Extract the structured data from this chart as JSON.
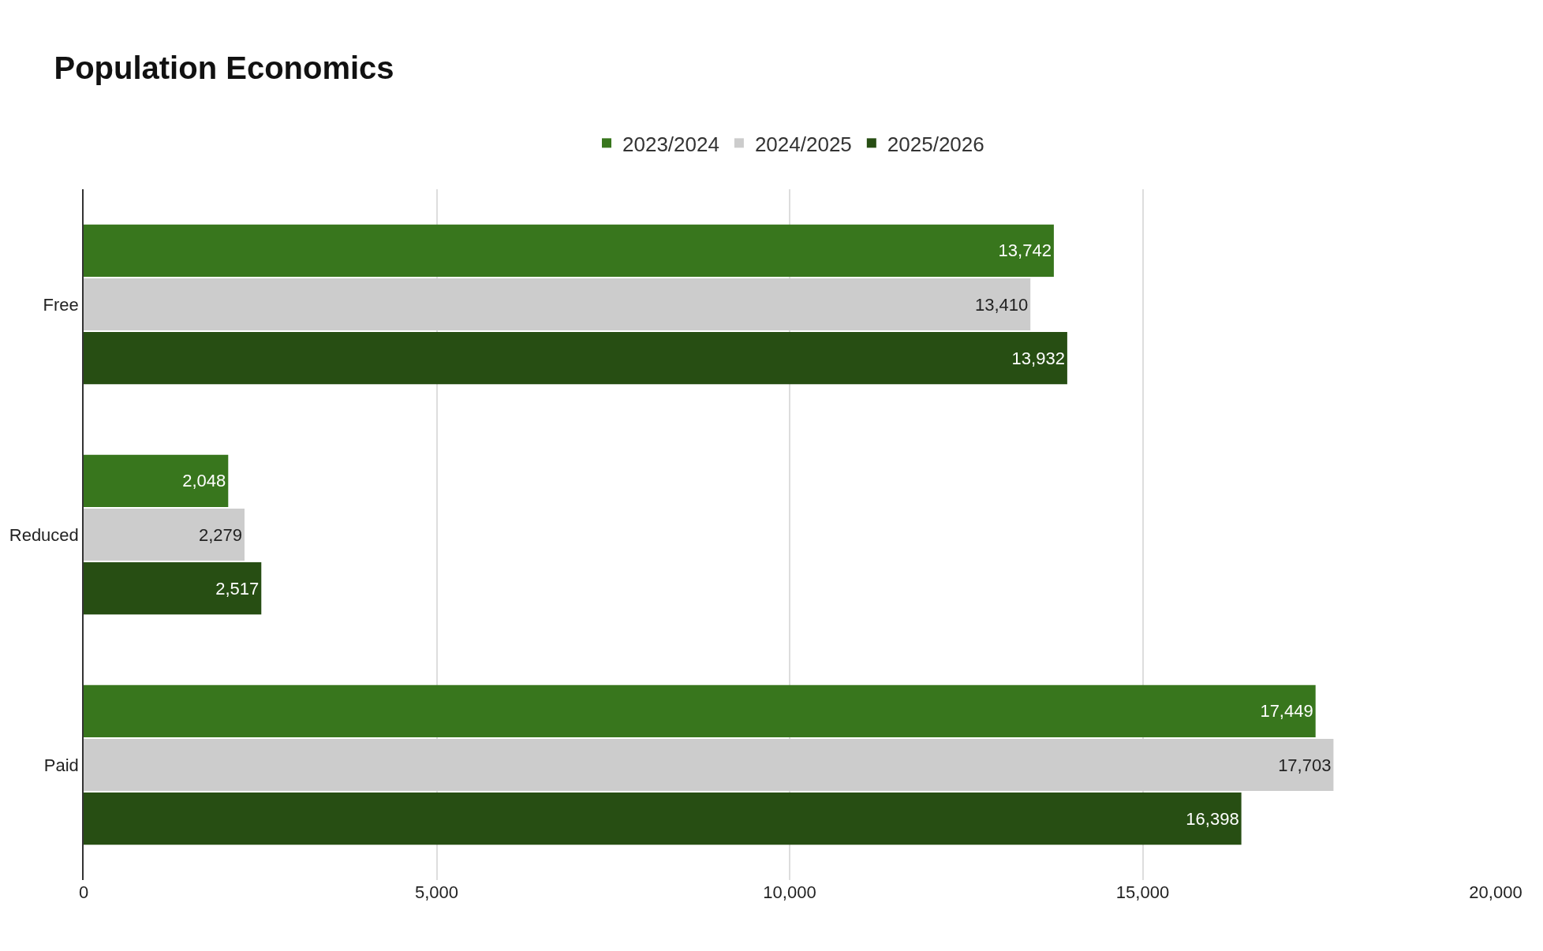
{
  "chart_data": {
    "type": "bar",
    "orientation": "horizontal",
    "title": "Population Economics",
    "categories": [
      "Free",
      "Reduced",
      "Paid"
    ],
    "series": [
      {
        "name": "2023/2024",
        "color": "#38761d",
        "values": [
          13742,
          2048,
          17449
        ],
        "value_labels": [
          "13,742",
          "2,048",
          "17,449"
        ]
      },
      {
        "name": "2024/2025",
        "color": "#cccccc",
        "values": [
          13410,
          2279,
          17703
        ],
        "value_labels": [
          "13,410",
          "2,279",
          "17,703"
        ]
      },
      {
        "name": "2025/2026",
        "color": "#274e13",
        "values": [
          13932,
          2517,
          16398
        ],
        "value_labels": [
          "13,932",
          "2,517",
          "16,398"
        ]
      }
    ],
    "xlim": [
      0,
      20000
    ],
    "xticks": [
      {
        "value": 0,
        "label": "0"
      },
      {
        "value": 5000,
        "label": "5,000"
      },
      {
        "value": 10000,
        "label": "10,000"
      },
      {
        "value": 15000,
        "label": "15,000"
      },
      {
        "value": 20000,
        "label": "20,000"
      }
    ],
    "grid": "x",
    "legend": "top"
  }
}
